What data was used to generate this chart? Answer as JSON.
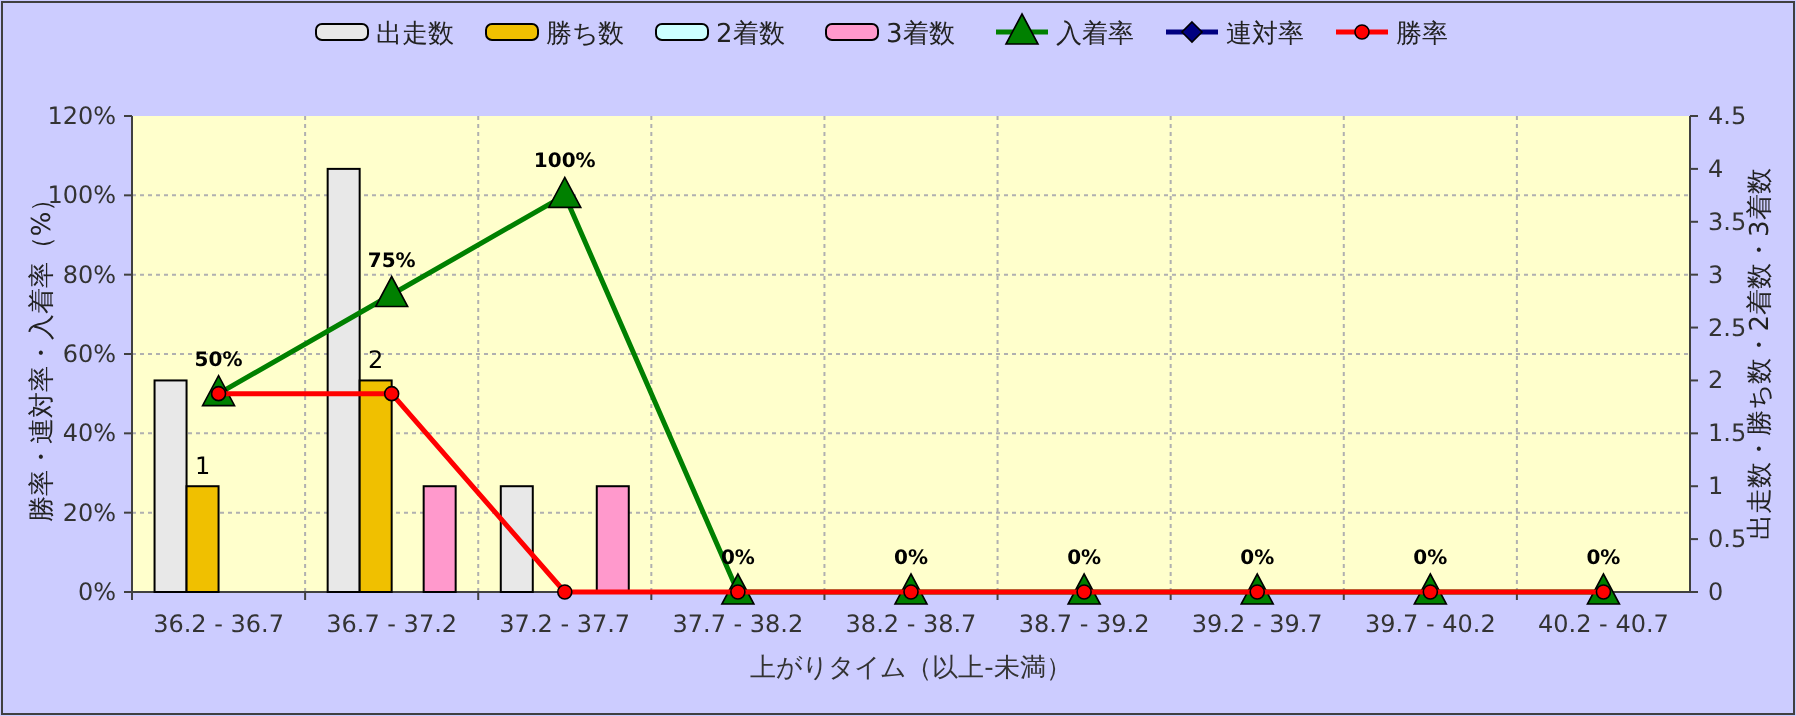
{
  "chart_data": {
    "type": "bar",
    "categories": [
      "36.2 - 36.7",
      "36.7 - 37.2",
      "37.2 - 37.7",
      "37.7 - 38.2",
      "38.2 - 38.7",
      "38.7 - 39.2",
      "39.2 - 39.7",
      "39.7 - 40.2",
      "40.2 - 40.7"
    ],
    "xlabel": "上がりタイム（以上-未満）",
    "ylabel": "勝率・連対率・入着率（%）",
    "y2label": "出走数・勝ち数・2着数・3着数",
    "ylim": [
      0,
      120
    ],
    "yticks": [
      {
        "value": 0,
        "label": "0%"
      },
      {
        "value": 20,
        "label": "20%"
      },
      {
        "value": 40,
        "label": "40%"
      },
      {
        "value": 60,
        "label": "60%"
      },
      {
        "value": 80,
        "label": "80%"
      },
      {
        "value": 100,
        "label": "100%"
      },
      {
        "value": 120,
        "label": "120%"
      }
    ],
    "y2lim": [
      0,
      4.5
    ],
    "y2ticks": [
      0,
      0.5,
      1,
      1.5,
      2,
      2.5,
      3,
      3.5,
      4,
      4.5
    ],
    "grid": true,
    "legend": "top",
    "series": [
      {
        "name": "出走数",
        "type": "bar",
        "axis": "y2",
        "color": "#e8e8e8",
        "values": [
          2,
          4,
          1,
          0,
          0,
          0,
          0,
          0,
          0
        ]
      },
      {
        "name": "勝ち数",
        "type": "bar",
        "axis": "y2",
        "color": "#f0c000",
        "values": [
          1,
          2,
          0,
          0,
          0,
          0,
          0,
          0,
          0
        ],
        "value_labels": [
          "1",
          "2",
          null,
          null,
          null,
          null,
          null,
          null,
          null
        ]
      },
      {
        "name": "2着数",
        "type": "bar",
        "axis": "y2",
        "color": "#ccffff",
        "values": [
          0,
          0,
          0,
          0,
          0,
          0,
          0,
          0,
          0
        ]
      },
      {
        "name": "3着数",
        "type": "bar",
        "axis": "y2",
        "color": "#ff99cc",
        "values": [
          0,
          1,
          1,
          0,
          0,
          0,
          0,
          0,
          0
        ]
      },
      {
        "name": "入着率",
        "type": "line",
        "axis": "y",
        "color": "#008000",
        "marker": "triangle",
        "values": [
          50,
          75,
          100,
          0,
          0,
          0,
          0,
          0,
          0
        ],
        "value_labels": [
          "50%",
          "75%",
          "100%",
          "0%",
          "0%",
          "0%",
          "0%",
          "0%",
          "0%"
        ]
      },
      {
        "name": "連対率",
        "type": "line",
        "axis": "y",
        "color": "#000080",
        "marker": "diamond",
        "values": [
          null,
          null,
          null,
          null,
          null,
          null,
          null,
          null,
          null
        ]
      },
      {
        "name": "勝率",
        "type": "line",
        "axis": "y",
        "color": "#ff0000",
        "marker": "circle",
        "values": [
          50,
          50,
          0,
          0,
          0,
          0,
          0,
          0,
          0
        ]
      }
    ]
  }
}
